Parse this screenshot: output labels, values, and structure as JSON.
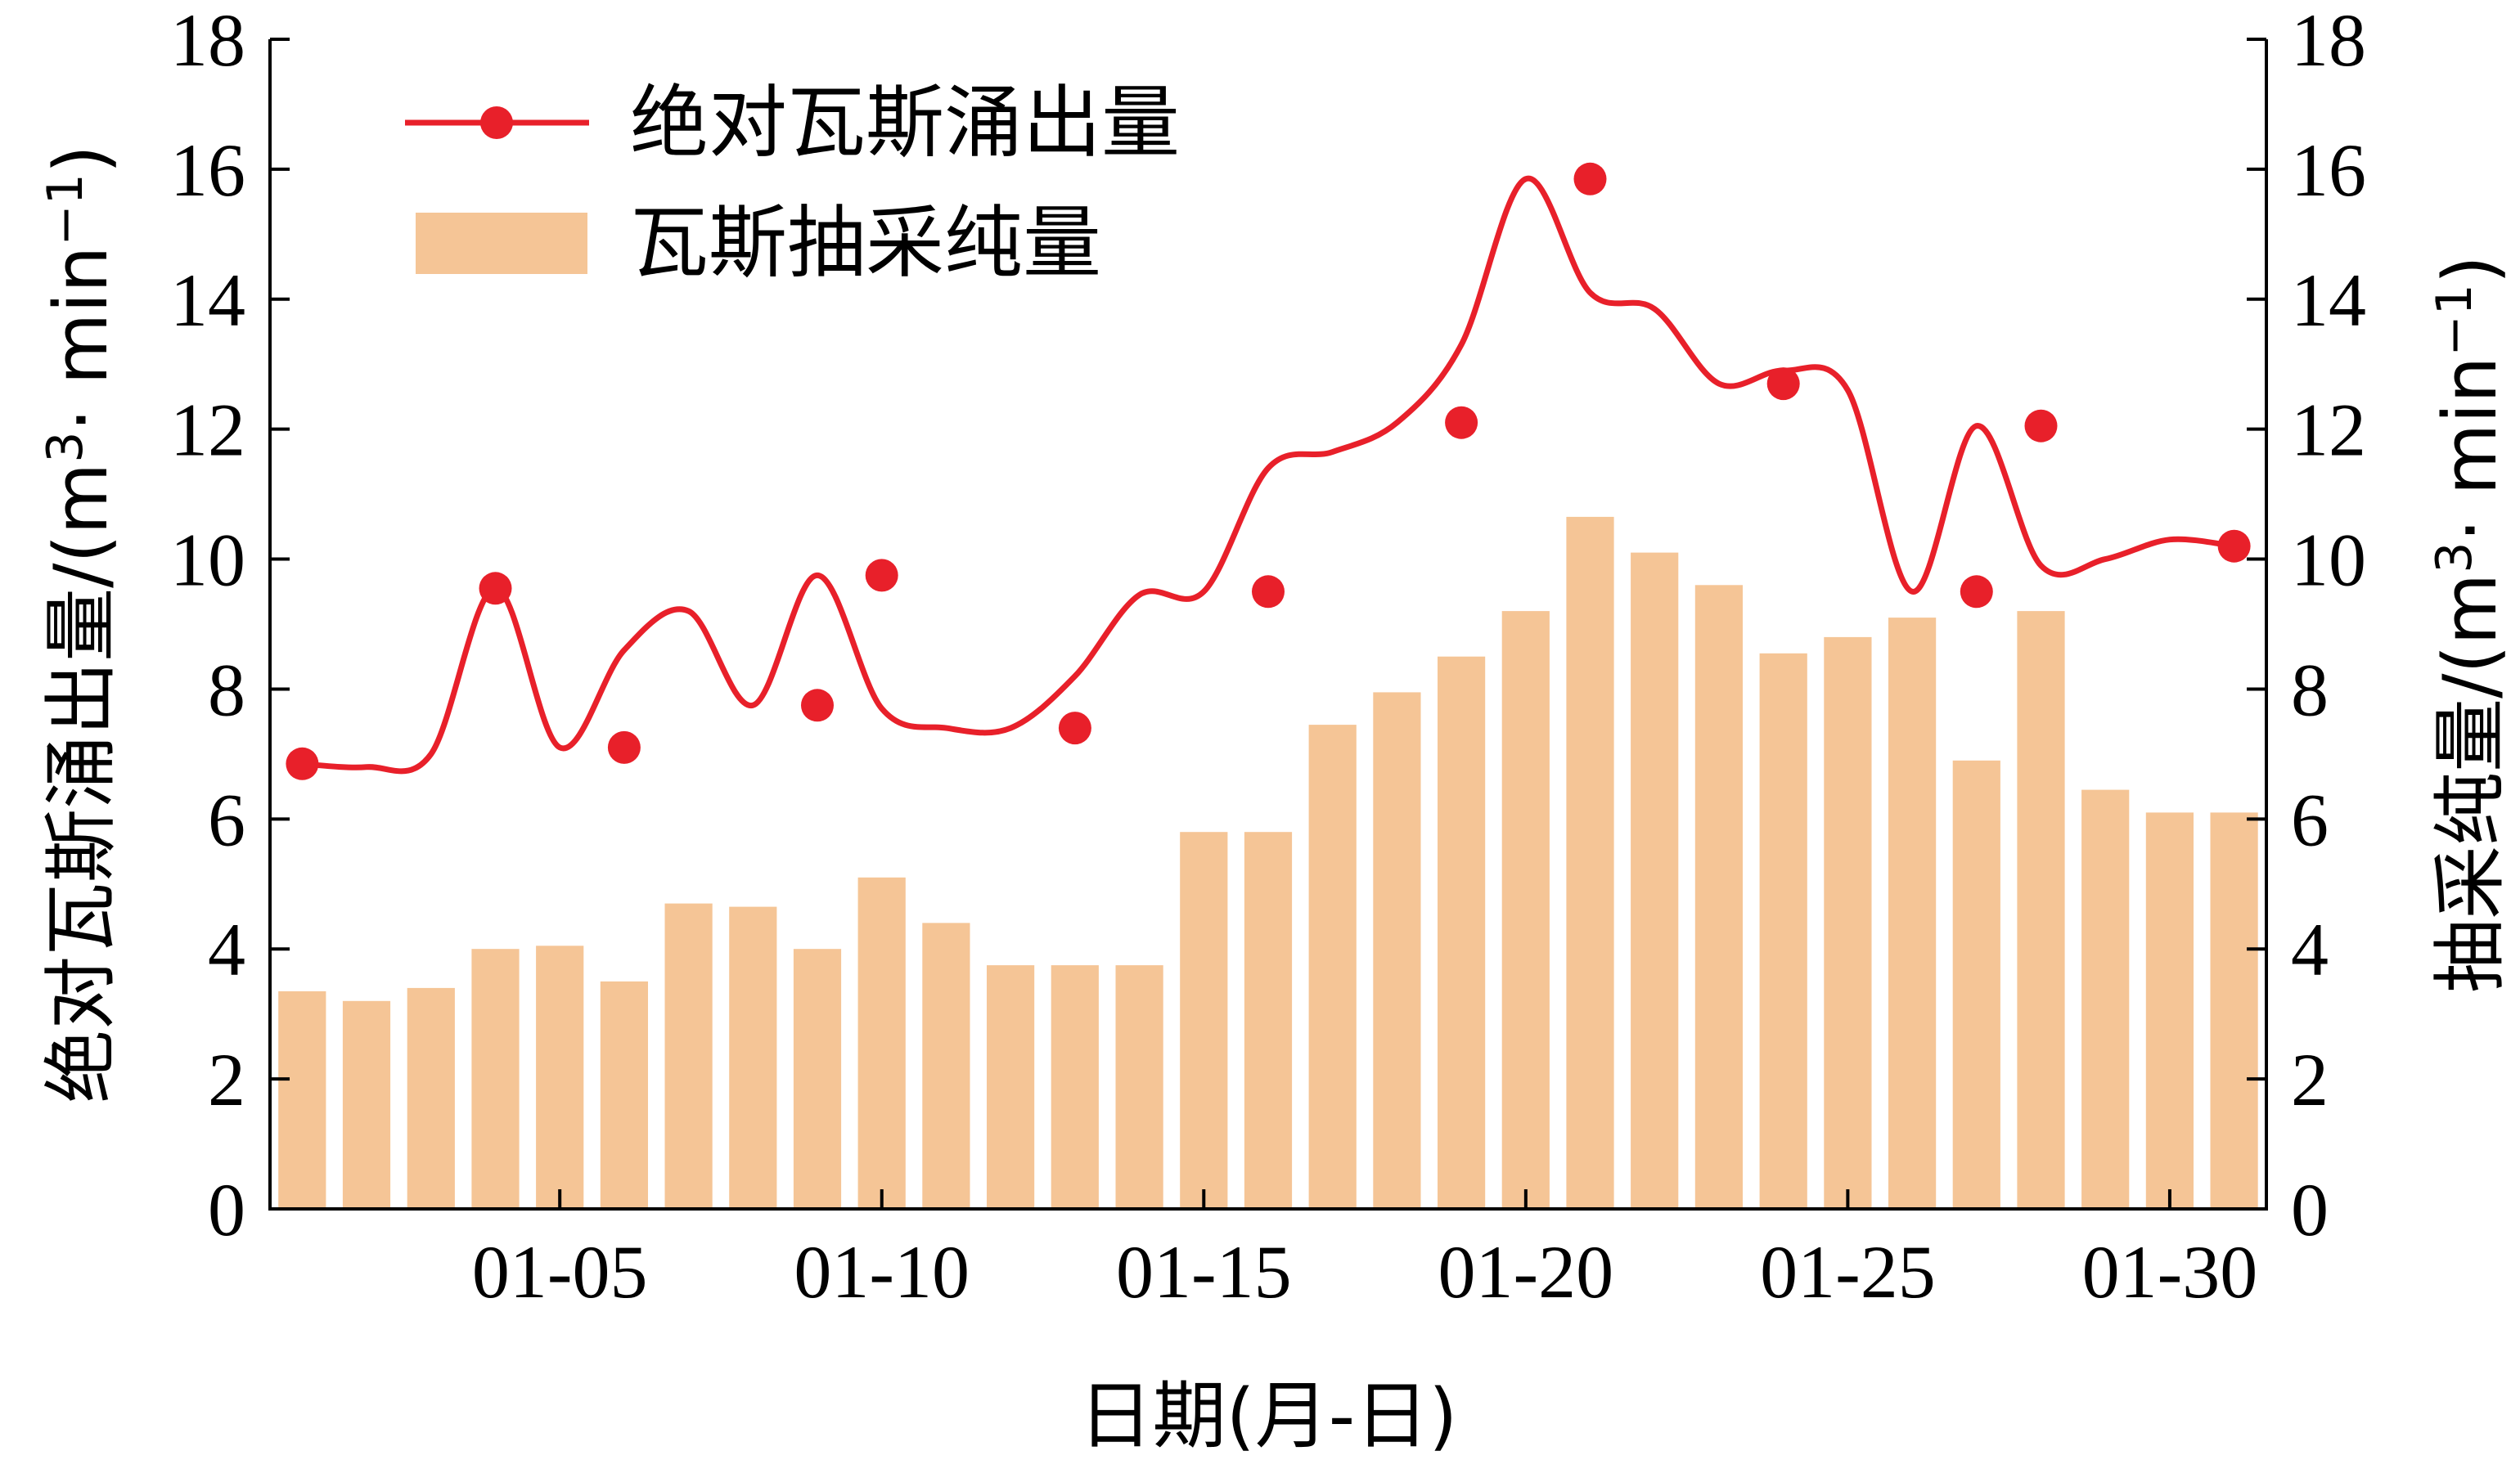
{
  "chart_data": {
    "type": "bar+line",
    "dual_axis": true,
    "x": [
      "01-01",
      "01-02",
      "01-03",
      "01-04",
      "01-05",
      "01-06",
      "01-07",
      "01-08",
      "01-09",
      "01-10",
      "01-11",
      "01-12",
      "01-13",
      "01-14",
      "01-15",
      "01-16",
      "01-17",
      "01-18",
      "01-19",
      "01-20",
      "01-21",
      "01-22",
      "01-23",
      "01-24",
      "01-25",
      "01-26",
      "01-27",
      "01-28",
      "01-29",
      "01-30",
      "01-31"
    ],
    "x_tick_labels": [
      "01-05",
      "01-10",
      "01-15",
      "01-20",
      "01-25",
      "01-30"
    ],
    "xlabel": "日期(月-日)",
    "ylabel_left": {
      "main": "绝对瓦斯涌出量/",
      "unit_pre": "(m",
      "sup1": "3",
      "unit_mid": "· min",
      "sup2": "−1",
      "unit_post": ")"
    },
    "ylabel_right": {
      "main": "抽采纯量/",
      "unit_pre": "(m",
      "sup1": "3",
      "unit_mid": "· min",
      "sup2": "−1",
      "unit_post": ")"
    },
    "ylim": [
      0,
      18
    ],
    "yticks": [
      "0",
      "2",
      "4",
      "6",
      "8",
      "10",
      "12",
      "14",
      "16",
      "18"
    ],
    "grid": false,
    "legend_position": "top-left",
    "bar_series": {
      "name": "瓦斯抽采纯量",
      "color": "#F5C596",
      "values": [
        3.35,
        3.2,
        3.4,
        4.0,
        4.05,
        3.5,
        4.7,
        4.65,
        4.0,
        5.1,
        4.4,
        3.75,
        3.75,
        3.75,
        5.8,
        5.8,
        7.45,
        7.95,
        8.5,
        9.2,
        10.65,
        10.1,
        9.6,
        8.55,
        8.8,
        9.1,
        6.9,
        9.2,
        6.45,
        6.1,
        6.1
      ]
    },
    "line_series": {
      "name": "绝对瓦斯涌出量",
      "color": "#E8202A",
      "values": [
        6.85,
        6.8,
        7.0,
        9.55,
        7.1,
        8.6,
        9.2,
        7.75,
        9.75,
        7.7,
        7.4,
        7.4,
        8.2,
        9.45,
        9.5,
        11.4,
        11.65,
        12.1,
        13.3,
        15.85,
        14.1,
        13.85,
        12.7,
        12.9,
        12.6,
        9.5,
        12.05,
        9.9,
        10.0,
        10.3,
        10.2
      ],
      "marker_points": [
        {
          "day": 1,
          "value": 6.85
        },
        {
          "day": 4,
          "value": 9.55
        },
        {
          "day": 6,
          "value": 7.1
        },
        {
          "day": 9,
          "value": 7.75
        },
        {
          "day": 10,
          "value": 9.75
        },
        {
          "day": 13,
          "value": 7.4
        },
        {
          "day": 16,
          "value": 9.5
        },
        {
          "day": 19,
          "value": 12.1
        },
        {
          "day": 21,
          "value": 15.85
        },
        {
          "day": 24,
          "value": 12.7
        },
        {
          "day": 27,
          "value": 9.5
        },
        {
          "day": 28,
          "value": 12.05
        },
        {
          "day": 31,
          "value": 10.2
        }
      ]
    }
  }
}
